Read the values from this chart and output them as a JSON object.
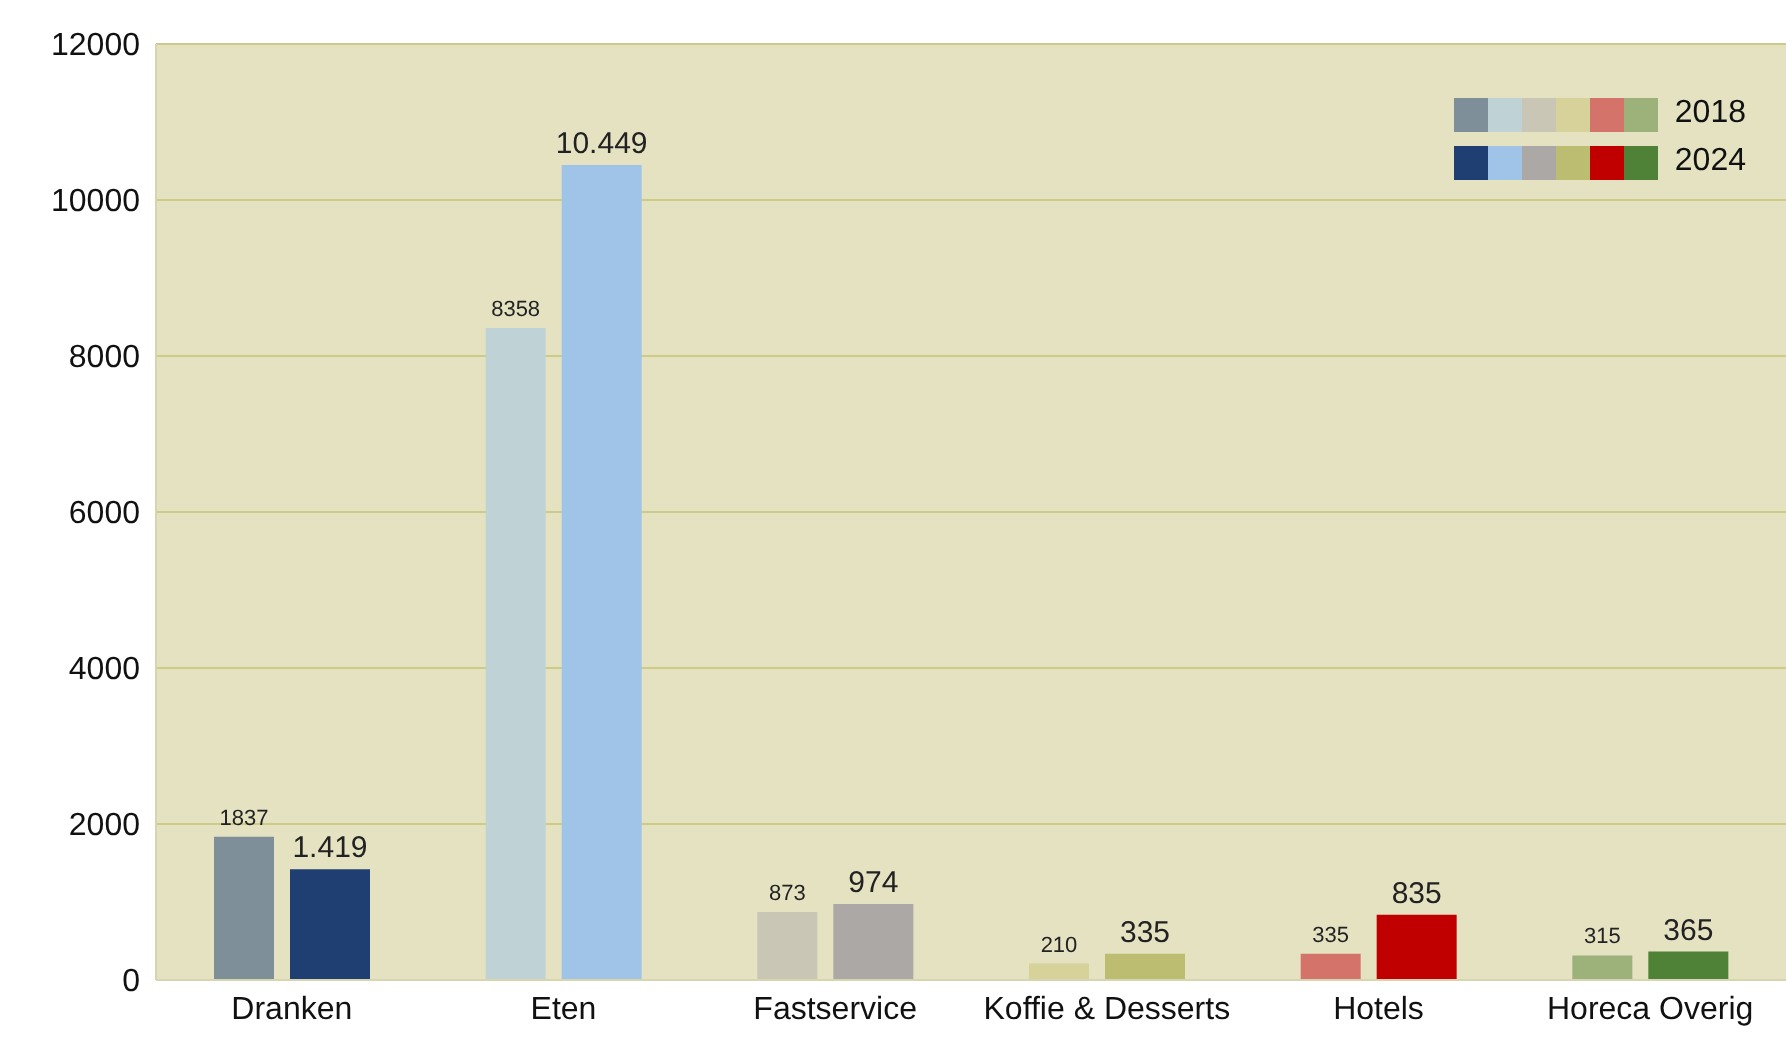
{
  "chart_data": {
    "type": "bar",
    "categories": [
      "Dranken",
      "Eten",
      "Fastservice",
      "Koffie & Desserts",
      "Hotels",
      "Horeca Overig"
    ],
    "series": [
      {
        "name": "2018",
        "colors": [
          "#7f8f99",
          "#bfd3d6",
          "#c9c6b5",
          "#d6d29a",
          "#d4736a",
          "#9db27a"
        ],
        "values": [
          1837,
          8358,
          873,
          210,
          335,
          315
        ],
        "value_labels": [
          "1837",
          "8358",
          "873",
          "210",
          "335",
          "315"
        ]
      },
      {
        "name": "2024",
        "colors": [
          "#1f3f73",
          "#9fc4e8",
          "#aba8a6",
          "#bdbd72",
          "#c00000",
          "#4f8236"
        ],
        "values": [
          1419,
          10449,
          974,
          335,
          835,
          365
        ],
        "value_labels": [
          "1.419",
          "10.449",
          "974",
          "335",
          "835",
          "365"
        ]
      }
    ],
    "ylim": [
      0,
      12000
    ],
    "yticks": [
      0,
      2000,
      4000,
      6000,
      8000,
      10000,
      12000
    ],
    "grid": "y",
    "legend": "top right"
  }
}
